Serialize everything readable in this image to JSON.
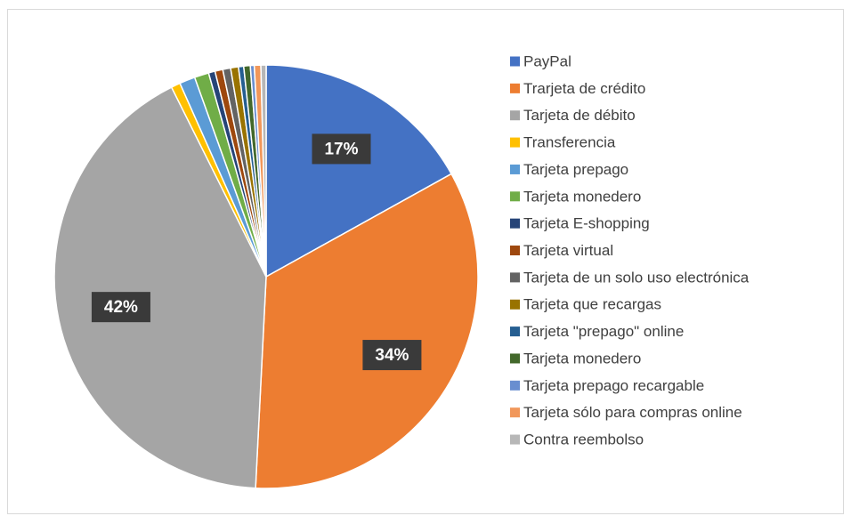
{
  "chart_data": {
    "type": "pie",
    "categories": [
      "PayPal",
      "Trarjeta de crédito",
      "Tarjeta de débito",
      "Transferencia",
      "Tarjeta prepago",
      "Tarjeta monedero",
      "Tarjeta E-shopping",
      "Tarjeta virtual",
      "Tarjeta de un solo uso electrónica",
      "Tarjeta que recargas",
      "Tarjeta \"prepago\" online",
      "Tarjeta monedero",
      "Tarjeta prepago recargable",
      "Tarjeta sólo para compras online",
      "Contra reembolso"
    ],
    "values": [
      17,
      34,
      42,
      0.7,
      1.2,
      1.1,
      0.5,
      0.6,
      0.6,
      0.6,
      0.4,
      0.5,
      0.3,
      0.5,
      0.4
    ],
    "value_labels": [
      "17%",
      "34%",
      "42%",
      null,
      null,
      null,
      null,
      null,
      null,
      null,
      null,
      null,
      null,
      null,
      null
    ],
    "colors": [
      "#4472c4",
      "#ed7d31",
      "#a5a5a5",
      "#ffc000",
      "#5b9bd5",
      "#70ad47",
      "#264478",
      "#9e480e",
      "#636363",
      "#997300",
      "#255e91",
      "#43682b",
      "#698ed0",
      "#f1975a",
      "#b7b7b7"
    ],
    "legend": "right"
  }
}
